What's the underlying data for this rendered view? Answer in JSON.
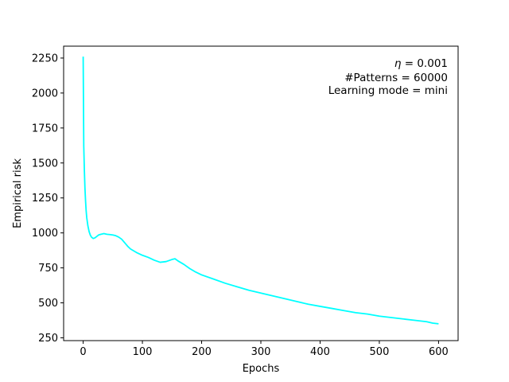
{
  "chart_data": {
    "type": "line",
    "xlabel": "Epochs",
    "ylabel": "Empirical risk",
    "xlim": [
      -33,
      633
    ],
    "ylim": [
      230,
      2335
    ],
    "xticks": [
      0,
      100,
      200,
      300,
      400,
      500,
      600
    ],
    "yticks": [
      250,
      500,
      750,
      1000,
      1250,
      1500,
      1750,
      2000,
      2250
    ],
    "grid": false,
    "legend": "none",
    "annotations": [
      {
        "prefix": "η",
        "text": " = 0.001"
      },
      {
        "text": "#Patterns = 60000"
      },
      {
        "text": "Learning mode = mini"
      }
    ],
    "annotation_position": "top-right",
    "series": [
      {
        "color": "#00ffff",
        "x": [
          0,
          1,
          2,
          3,
          4,
          5,
          6,
          8,
          10,
          12,
          14,
          17,
          20,
          23,
          26,
          30,
          35,
          40,
          45,
          50,
          55,
          60,
          65,
          70,
          75,
          80,
          90,
          100,
          110,
          120,
          130,
          140,
          150,
          155,
          160,
          170,
          180,
          190,
          200,
          220,
          240,
          260,
          280,
          300,
          320,
          340,
          360,
          380,
          400,
          420,
          440,
          460,
          480,
          500,
          520,
          540,
          560,
          580,
          590,
          600
        ],
        "y": [
          2260,
          1620,
          1450,
          1320,
          1230,
          1160,
          1110,
          1050,
          1010,
          985,
          970,
          960,
          965,
          975,
          985,
          990,
          995,
          990,
          988,
          985,
          980,
          970,
          955,
          930,
          905,
          885,
          860,
          840,
          825,
          805,
          790,
          795,
          810,
          815,
          800,
          775,
          745,
          720,
          700,
          670,
          640,
          615,
          590,
          570,
          550,
          530,
          510,
          490,
          475,
          460,
          445,
          430,
          420,
          405,
          395,
          385,
          375,
          365,
          355,
          350
        ]
      }
    ]
  }
}
